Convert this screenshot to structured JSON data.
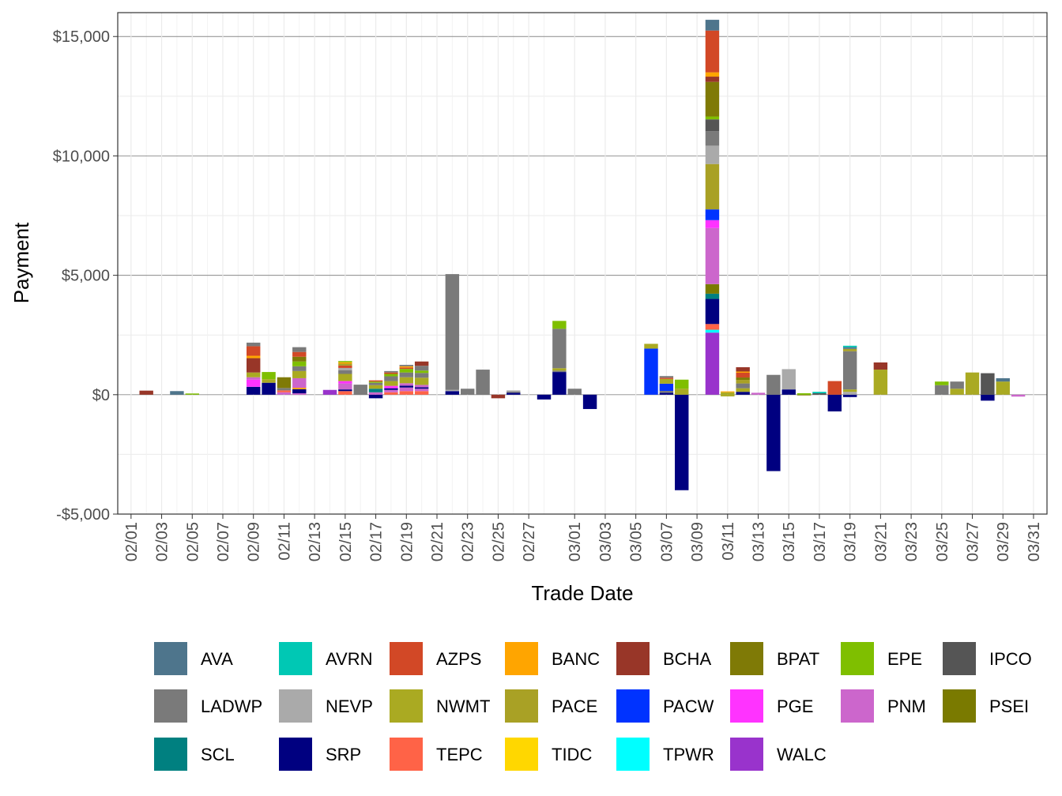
{
  "chart_data": {
    "type": "bar",
    "stacked": true,
    "title": "",
    "xlabel": "Trade Date",
    "ylabel": "Payment",
    "ylim": [
      -5000,
      16000
    ],
    "yticks": [
      -5000,
      0,
      5000,
      10000,
      15000
    ],
    "ytick_labels": [
      "-$5,000",
      "$0",
      "$5,000",
      "$10,000",
      "$15,000"
    ],
    "dates": [
      "02/01",
      "02/02",
      "02/03",
      "02/04",
      "02/05",
      "02/06",
      "02/07",
      "02/08",
      "02/09",
      "02/10",
      "02/11",
      "02/12",
      "02/13",
      "02/14",
      "02/15",
      "02/16",
      "02/17",
      "02/18",
      "02/19",
      "02/20",
      "02/21",
      "02/22",
      "02/23",
      "02/24",
      "02/25",
      "02/26",
      "02/27",
      "02/28",
      "02/29",
      "03/01",
      "03/02",
      "03/03",
      "03/04",
      "03/05",
      "03/06",
      "03/07",
      "03/08",
      "03/09",
      "03/10",
      "03/11",
      "03/12",
      "03/13",
      "03/14",
      "03/15",
      "03/16",
      "03/17",
      "03/18",
      "03/19",
      "03/20",
      "03/21",
      "03/22",
      "03/23",
      "03/24",
      "03/25",
      "03/26",
      "03/27",
      "03/28",
      "03/29",
      "03/30",
      "03/31"
    ],
    "xtick_labels": [
      "02/01",
      "02/03",
      "02/05",
      "02/07",
      "02/09",
      "02/11",
      "02/13",
      "02/15",
      "02/17",
      "02/19",
      "02/21",
      "02/23",
      "02/25",
      "02/27",
      "03/01",
      "03/03",
      "03/05",
      "03/07",
      "03/09",
      "03/11",
      "03/13",
      "03/15",
      "03/17",
      "03/19",
      "03/21",
      "03/23",
      "03/25",
      "03/27",
      "03/29",
      "03/31"
    ],
    "legend_position": "bottom",
    "legend": [
      {
        "name": "AVA",
        "color": "#4E758C"
      },
      {
        "name": "AVRN",
        "color": "#00C8B4"
      },
      {
        "name": "AZPS",
        "color": "#D24826"
      },
      {
        "name": "BANC",
        "color": "#FFA500"
      },
      {
        "name": "BCHA",
        "color": "#983628"
      },
      {
        "name": "BPAT",
        "color": "#7F7A06"
      },
      {
        "name": "EPE",
        "color": "#7FBF00"
      },
      {
        "name": "IPCO",
        "color": "#555555"
      },
      {
        "name": "LADWP",
        "color": "#7A7A7A"
      },
      {
        "name": "NEVP",
        "color": "#AAAAAA"
      },
      {
        "name": "NWMT",
        "color": "#AAAA22"
      },
      {
        "name": "PACE",
        "color": "#A9A125"
      },
      {
        "name": "PACW",
        "color": "#0033FF"
      },
      {
        "name": "PGE",
        "color": "#FF33FF"
      },
      {
        "name": "PNM",
        "color": "#CC66CC"
      },
      {
        "name": "PSEI",
        "color": "#7A7A00"
      },
      {
        "name": "SCL",
        "color": "#008080"
      },
      {
        "name": "SRP",
        "color": "#000080"
      },
      {
        "name": "TEPC",
        "color": "#FF6347"
      },
      {
        "name": "TIDC",
        "color": "#FFD700"
      },
      {
        "name": "TPWR",
        "color": "#00FFFF"
      },
      {
        "name": "WALC",
        "color": "#9933CC"
      }
    ],
    "series": [
      {
        "date": "02/02",
        "segments": [
          [
            "BCHA",
            170
          ]
        ]
      },
      {
        "date": "02/04",
        "segments": [
          [
            "AVA",
            150
          ]
        ]
      },
      {
        "date": "02/05",
        "segments": [
          [
            "EPE",
            50
          ]
        ]
      },
      {
        "date": "02/09",
        "segments": [
          [
            "SRP",
            330
          ],
          [
            "PGE",
            300
          ],
          [
            "PNM",
            100
          ],
          [
            "NWMT",
            200
          ],
          [
            "BCHA",
            600
          ],
          [
            "BANC",
            100
          ],
          [
            "AZPS",
            400
          ],
          [
            "LADWP",
            150
          ]
        ]
      },
      {
        "date": "02/10",
        "segments": [
          [
            "SRP",
            500
          ],
          [
            "NWMT",
            150
          ],
          [
            "EPE",
            300
          ]
        ]
      },
      {
        "date": "02/11",
        "segments": [
          [
            "PNM",
            100
          ],
          [
            "TEPC",
            80
          ],
          [
            "LADWP",
            100
          ],
          [
            "BPAT",
            450
          ]
        ]
      },
      {
        "date": "02/12",
        "segments": [
          [
            "PNM",
            60
          ],
          [
            "SRP",
            170
          ],
          [
            "BANC",
            60
          ],
          [
            "PNM",
            400
          ],
          [
            "NWMT",
            300
          ],
          [
            "LADWP",
            200
          ],
          [
            "EPE",
            200
          ],
          [
            "BPAT",
            200
          ],
          [
            "AZPS",
            200
          ],
          [
            "LADWP",
            200
          ]
        ]
      },
      {
        "date": "02/14",
        "segments": [
          [
            "WALC",
            200
          ]
        ]
      },
      {
        "date": "02/15",
        "segments": [
          [
            "TEPC",
            150
          ],
          [
            "SRP",
            70
          ],
          [
            "PNM",
            250
          ],
          [
            "PGE",
            100
          ],
          [
            "NWMT",
            300
          ],
          [
            "LADWP",
            150
          ],
          [
            "NEVP",
            100
          ],
          [
            "AZPS",
            100
          ],
          [
            "PACE",
            80
          ],
          [
            "BANC",
            60
          ],
          [
            "EPE",
            50
          ]
        ]
      },
      {
        "date": "02/16",
        "segments": [
          [
            "LADWP",
            420
          ]
        ]
      },
      {
        "date": "02/17",
        "segments": [
          [
            "SRP",
            -150
          ],
          [
            "PNM",
            100
          ],
          [
            "SCL",
            150
          ],
          [
            "NWMT",
            150
          ],
          [
            "LADWP",
            100
          ],
          [
            "EPE",
            50
          ],
          [
            "AZPS",
            50
          ]
        ]
      },
      {
        "date": "02/18",
        "segments": [
          [
            "TEPC",
            100
          ],
          [
            "PNM",
            100
          ],
          [
            "SRP",
            70
          ],
          [
            "PGE",
            100
          ],
          [
            "NWMT",
            200
          ],
          [
            "LADWP",
            200
          ],
          [
            "EPE",
            100
          ],
          [
            "AZPS",
            60
          ],
          [
            "LADWP",
            60
          ]
        ]
      },
      {
        "date": "02/19",
        "segments": [
          [
            "TEPC",
            150
          ],
          [
            "PNM",
            150
          ],
          [
            "SRP",
            80
          ],
          [
            "PNM",
            100
          ],
          [
            "NWMT",
            250
          ],
          [
            "LADWP",
            200
          ],
          [
            "EPE",
            150
          ],
          [
            "AZPS",
            60
          ],
          [
            "BANC",
            50
          ],
          [
            "LADWP",
            60
          ]
        ]
      },
      {
        "date": "02/20",
        "segments": [
          [
            "TEPC",
            150
          ],
          [
            "PNM",
            100
          ],
          [
            "SRP",
            60
          ],
          [
            "PNM",
            100
          ],
          [
            "NWMT",
            300
          ],
          [
            "LADWP",
            200
          ],
          [
            "EPE",
            100
          ],
          [
            "LADWP",
            200
          ],
          [
            "BCHA",
            180
          ]
        ]
      },
      {
        "date": "02/22",
        "segments": [
          [
            "SRP",
            150
          ],
          [
            "NEVP",
            50
          ],
          [
            "LADWP",
            4850
          ]
        ]
      },
      {
        "date": "02/23",
        "segments": [
          [
            "LADWP",
            250
          ]
        ]
      },
      {
        "date": "02/24",
        "segments": [
          [
            "LADWP",
            1050
          ]
        ]
      },
      {
        "date": "02/25",
        "segments": [
          [
            "BCHA",
            -150
          ]
        ]
      },
      {
        "date": "02/26",
        "segments": [
          [
            "SRP",
            80
          ],
          [
            "LADWP",
            50
          ],
          [
            "NEVP",
            50
          ]
        ]
      },
      {
        "date": "02/28",
        "segments": [
          [
            "SRP",
            -200
          ]
        ]
      },
      {
        "date": "02/29",
        "segments": [
          [
            "SRP",
            950
          ],
          [
            "LADWP",
            60
          ],
          [
            "NWMT",
            100
          ],
          [
            "LADWP",
            1650
          ],
          [
            "EPE",
            330
          ]
        ]
      },
      {
        "date": "03/01",
        "segments": [
          [
            "LADWP",
            250
          ]
        ]
      },
      {
        "date": "03/02",
        "segments": [
          [
            "SRP",
            -600
          ]
        ]
      },
      {
        "date": "03/06",
        "segments": [
          [
            "PACW",
            1930
          ],
          [
            "NWMT",
            200
          ]
        ]
      },
      {
        "date": "03/07",
        "segments": [
          [
            "SRP",
            80
          ],
          [
            "LADWP",
            80
          ],
          [
            "PACW",
            300
          ],
          [
            "NWMT",
            200
          ],
          [
            "AZPS",
            50
          ],
          [
            "LADWP",
            70
          ]
        ]
      },
      {
        "date": "03/08",
        "segments": [
          [
            "SRP",
            -4000
          ],
          [
            "NWMT",
            250
          ],
          [
            "EPE",
            380
          ]
        ]
      },
      {
        "date": "03/10",
        "segments": [
          [
            "WALC",
            2600
          ],
          [
            "TPWR",
            120
          ],
          [
            "TEPC",
            240
          ],
          [
            "SRP",
            1050
          ],
          [
            "SCL",
            220
          ],
          [
            "PSEI",
            400
          ],
          [
            "PNM",
            2350
          ],
          [
            "PGE",
            330
          ],
          [
            "PACW",
            450
          ],
          [
            "PACE",
            1900
          ],
          [
            "NEVP",
            770
          ],
          [
            "LADWP",
            600
          ],
          [
            "IPCO",
            500
          ],
          [
            "EPE",
            120
          ],
          [
            "BPAT",
            1450
          ],
          [
            "BCHA",
            220
          ],
          [
            "BANC",
            180
          ],
          [
            "AZPS",
            1750
          ],
          [
            "AVA",
            450
          ]
        ]
      },
      {
        "date": "03/11",
        "segments": [
          [
            "NWMT",
            -70
          ],
          [
            "NWMT",
            100
          ],
          [
            "BANC",
            40
          ]
        ]
      },
      {
        "date": "03/12",
        "segments": [
          [
            "SRP",
            120
          ],
          [
            "NWMT",
            150
          ],
          [
            "LADWP",
            200
          ],
          [
            "PACE",
            150
          ],
          [
            "BPAT",
            100
          ],
          [
            "AZPS",
            200
          ],
          [
            "BANC",
            50
          ],
          [
            "BCHA",
            180
          ]
        ]
      },
      {
        "date": "03/13",
        "segments": [
          [
            "PNM",
            80
          ]
        ]
      },
      {
        "date": "03/14",
        "segments": [
          [
            "SRP",
            -3200
          ],
          [
            "LADWP",
            830
          ]
        ]
      },
      {
        "date": "03/15",
        "segments": [
          [
            "SRP",
            220
          ],
          [
            "NEVP",
            850
          ]
        ]
      },
      {
        "date": "03/16",
        "segments": [
          [
            "BPAT",
            -30
          ],
          [
            "EPE",
            60
          ]
        ]
      },
      {
        "date": "03/17",
        "segments": [
          [
            "IPCO",
            60
          ],
          [
            "AVRN",
            60
          ]
        ]
      },
      {
        "date": "03/18",
        "segments": [
          [
            "SRP",
            -700
          ],
          [
            "AZPS",
            570
          ]
        ]
      },
      {
        "date": "03/19",
        "segments": [
          [
            "SRP",
            -100
          ],
          [
            "NEVP",
            120
          ],
          [
            "NWMT",
            100
          ],
          [
            "LADWP",
            1600
          ],
          [
            "PACE",
            100
          ],
          [
            "AVA",
            70
          ],
          [
            "AVRN",
            60
          ]
        ]
      },
      {
        "date": "03/21",
        "segments": [
          [
            "NWMT",
            1050
          ],
          [
            "BCHA",
            300
          ]
        ]
      },
      {
        "date": "03/25",
        "segments": [
          [
            "LADWP",
            400
          ],
          [
            "EPE",
            150
          ]
        ]
      },
      {
        "date": "03/26",
        "segments": [
          [
            "NWMT",
            250
          ],
          [
            "LADWP",
            300
          ]
        ]
      },
      {
        "date": "03/27",
        "segments": [
          [
            "NWMT",
            930
          ]
        ]
      },
      {
        "date": "03/28",
        "segments": [
          [
            "SRP",
            -250
          ],
          [
            "IPCO",
            900
          ]
        ]
      },
      {
        "date": "03/29",
        "segments": [
          [
            "NWMT",
            550
          ],
          [
            "AVA",
            140
          ]
        ]
      },
      {
        "date": "03/30",
        "segments": [
          [
            "PNM",
            -80
          ]
        ]
      }
    ]
  }
}
